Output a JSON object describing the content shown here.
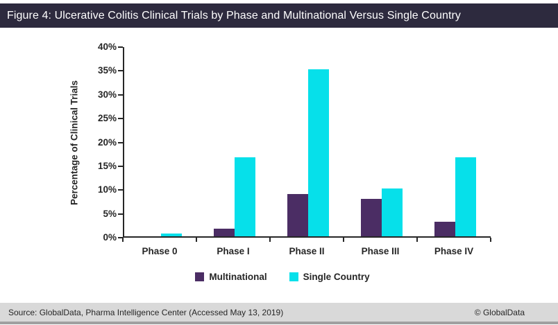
{
  "title_bar": {
    "text": "Figure 4: Ulcerative Colitis Clinical Trials by Phase and Multinational Versus Single Country"
  },
  "chart_data": {
    "type": "bar",
    "categories": [
      "Phase 0",
      "Phase I",
      "Phase II",
      "Phase III",
      "Phase IV"
    ],
    "series": [
      {
        "name": "Multinational",
        "color": "#4b2d64",
        "values": [
          0,
          1.6,
          8.8,
          7.8,
          3.0
        ]
      },
      {
        "name": "Single Country",
        "color": "#06e0ea",
        "values": [
          0.6,
          16.6,
          35.0,
          10.0,
          16.6
        ]
      }
    ],
    "title": "",
    "xlabel": "",
    "ylabel": "Percentage of Clinical Trials",
    "ylim": [
      0,
      40
    ],
    "ytick_step": 5,
    "ytick_suffix": "%",
    "grid": false,
    "legend_position": "bottom"
  },
  "footer": {
    "source": "Source: GlobalData, Pharma Intelligence Center (Accessed May 13, 2019)",
    "copyright": "© GlobalData"
  }
}
